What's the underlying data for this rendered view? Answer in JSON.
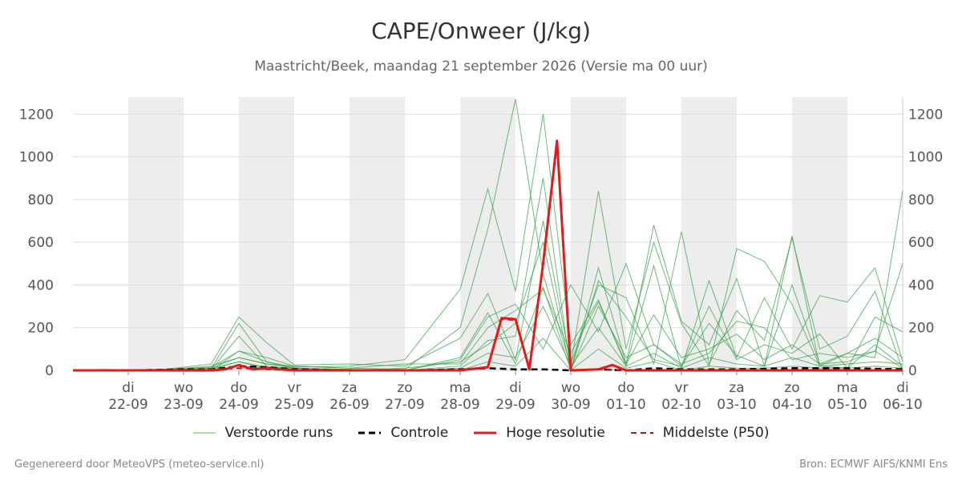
{
  "title": "CAPE/Onweer (J/kg)",
  "subtitle": "Maastricht/Beek, maandag 21 september 2026 (Versie ma 00 uur)",
  "footer_left": "Gegenereerd door MeteoVPS (meteo-service.nl)",
  "footer_right": "Bron: ECMWF AIFS/KNMI Ens",
  "colors": {
    "ensemble": "#2e9e3e",
    "control": "#000000",
    "hires": "#e31a1c",
    "median": "#b21416",
    "weekend_band": "#ededed",
    "grid": "#dddddd"
  },
  "legend": [
    {
      "label": "Verstoorde runs",
      "style": "thin-green"
    },
    {
      "label": "Controle",
      "style": "black-dashed"
    },
    {
      "label": "Hoge resolutie",
      "style": "red-solid"
    },
    {
      "label": "Middelste (P50)",
      "style": "darkred-dashed"
    }
  ],
  "chart_data": {
    "type": "line",
    "title": "CAPE/Onweer (J/kg)",
    "subtitle": "Maastricht/Beek, maandag 21 september 2026 (Versie ma 00 uur)",
    "x_unit": "days since 21-09 00:00",
    "xlim": [
      0,
      15
    ],
    "ylim": [
      0,
      1280
    ],
    "yticks": [
      0,
      200,
      400,
      600,
      800,
      1000,
      1200
    ],
    "grid": true,
    "legend_position": "bottom",
    "x_ticks": [
      {
        "x": 1,
        "day": "di",
        "date": "22-09"
      },
      {
        "x": 2,
        "day": "wo",
        "date": "23-09"
      },
      {
        "x": 3,
        "day": "do",
        "date": "24-09"
      },
      {
        "x": 4,
        "day": "vr",
        "date": "25-09"
      },
      {
        "x": 5,
        "day": "za",
        "date": "26-09"
      },
      {
        "x": 6,
        "day": "zo",
        "date": "27-09"
      },
      {
        "x": 7,
        "day": "ma",
        "date": "28-09"
      },
      {
        "x": 8,
        "day": "di",
        "date": "29-09"
      },
      {
        "x": 9,
        "day": "wo",
        "date": "30-09"
      },
      {
        "x": 10,
        "day": "do",
        "date": "01-10"
      },
      {
        "x": 11,
        "day": "vr",
        "date": "02-10"
      },
      {
        "x": 12,
        "day": "za",
        "date": "03-10"
      },
      {
        "x": 13,
        "day": "zo",
        "date": "04-10"
      },
      {
        "x": 14,
        "day": "ma",
        "date": "05-10"
      },
      {
        "x": 15,
        "day": "di",
        "date": "06-10"
      }
    ],
    "shaded_days": [
      [
        1,
        2
      ],
      [
        3,
        4
      ],
      [
        5,
        6
      ],
      [
        7,
        8
      ],
      [
        9,
        10
      ],
      [
        11,
        12
      ],
      [
        13,
        14
      ]
    ],
    "series": [
      {
        "name": "Verstoorde runs",
        "role": "ensemble",
        "x": [
          0.5,
          1.5,
          2.5,
          3.0,
          3.5,
          4.0,
          5.0,
          6.0,
          7.0,
          7.5,
          8.0,
          8.5,
          9.0,
          9.5,
          10.0,
          10.5,
          11.0,
          11.5,
          12.0,
          12.5,
          13.0,
          13.5,
          14.0,
          14.5,
          15.0
        ],
        "y": [
          0,
          0,
          10,
          40,
          15,
          10,
          5,
          0,
          60,
          270,
          30,
          390,
          0,
          480,
          30,
          680,
          230,
          120,
          430,
          20,
          630,
          20,
          80,
          60,
          840
        ]
      },
      {
        "name": "Verstoorde runs",
        "role": "ensemble",
        "x": [
          0.5,
          1.5,
          2.5,
          3.0,
          3.5,
          4.0,
          5.0,
          6.0,
          7.0,
          7.5,
          8.0,
          8.5,
          9.0,
          9.5,
          10.0,
          10.5,
          11.0,
          11.5,
          12.0,
          12.5,
          13.0,
          13.5,
          14.0,
          14.5,
          15.0
        ],
        "y": [
          0,
          0,
          20,
          60,
          30,
          20,
          10,
          5,
          200,
          660,
          1270,
          450,
          20,
          840,
          100,
          600,
          220,
          20,
          570,
          510,
          310,
          20,
          10,
          250,
          180
        ]
      },
      {
        "name": "Verstoorde runs",
        "role": "ensemble",
        "x": [
          0.5,
          1.5,
          2.5,
          3.0,
          3.5,
          4.0,
          5.0,
          6.0,
          7.0,
          7.5,
          8.0,
          8.5,
          9.0,
          9.5,
          10.0,
          10.5,
          11.0,
          11.5,
          12.0,
          12.5,
          13.0,
          13.5,
          14.0,
          14.5,
          15.0
        ],
        "y": [
          0,
          5,
          15,
          90,
          40,
          15,
          20,
          50,
          380,
          850,
          370,
          1200,
          120,
          330,
          20,
          490,
          10,
          420,
          60,
          340,
          100,
          350,
          320,
          480,
          40
        ]
      },
      {
        "name": "Verstoorde runs",
        "role": "ensemble",
        "x": [
          0.5,
          1.5,
          2.5,
          3.0,
          3.5,
          4.0,
          5.0,
          6.0,
          7.0,
          7.5,
          8.0,
          8.5,
          9.0,
          9.5,
          10.0,
          10.5,
          11.0,
          11.5,
          12.0,
          12.5,
          13.0,
          13.5,
          14.0,
          14.5,
          15.0
        ],
        "y": [
          5,
          0,
          30,
          250,
          130,
          25,
          30,
          20,
          150,
          360,
          50,
          700,
          30,
          400,
          340,
          30,
          650,
          30,
          280,
          140,
          620,
          100,
          160,
          370,
          0
        ]
      },
      {
        "name": "Verstoorde runs",
        "role": "ensemble",
        "x": [
          0.5,
          1.5,
          2.5,
          3.0,
          3.5,
          4.0,
          5.0,
          6.0,
          7.0,
          7.5,
          8.0,
          8.5,
          9.0,
          9.5,
          10.0,
          10.5,
          11.0,
          11.5,
          12.0,
          12.5,
          13.0,
          13.5,
          14.0,
          14.5,
          15.0
        ],
        "y": [
          0,
          0,
          10,
          220,
          40,
          10,
          5,
          0,
          50,
          250,
          310,
          100,
          400,
          180,
          500,
          120,
          20,
          220,
          70,
          20,
          400,
          30,
          40,
          90,
          500
        ]
      },
      {
        "name": "Verstoorde runs",
        "role": "ensemble",
        "x": [
          0.5,
          1.5,
          2.5,
          3.0,
          3.5,
          4.0,
          5.0,
          6.0,
          7.0,
          7.5,
          8.0,
          8.5,
          9.0,
          9.5,
          10.0,
          10.5,
          11.0,
          11.5,
          12.0,
          12.5,
          13.0,
          13.5,
          14.0,
          14.5,
          15.0
        ],
        "y": [
          0,
          0,
          5,
          160,
          20,
          5,
          0,
          10,
          40,
          120,
          220,
          600,
          0,
          420,
          250,
          50,
          20,
          300,
          50,
          120,
          80,
          170,
          10,
          120,
          20
        ]
      },
      {
        "name": "Verstoorde runs",
        "role": "ensemble",
        "x": [
          0.5,
          1.5,
          2.5,
          3.0,
          3.5,
          4.0,
          5.0,
          6.0,
          7.0,
          7.5,
          8.0,
          8.5,
          9.0,
          9.5,
          10.0,
          10.5,
          11.0,
          11.5,
          12.0,
          12.5,
          13.0,
          13.5,
          14.0,
          14.5,
          15.0
        ],
        "y": [
          0,
          0,
          0,
          90,
          60,
          20,
          10,
          30,
          30,
          200,
          280,
          380,
          80,
          320,
          30,
          260,
          60,
          100,
          170,
          50,
          120,
          30,
          80,
          150,
          60
        ]
      },
      {
        "name": "Verstoorde runs",
        "role": "ensemble",
        "x": [
          0.5,
          1.5,
          2.5,
          3.0,
          3.5,
          4.0,
          5.0,
          6.0,
          7.0,
          7.5,
          8.0,
          8.5,
          9.0,
          9.5,
          10.0,
          10.5,
          11.0,
          11.5,
          12.0,
          12.5,
          13.0,
          13.5,
          14.0,
          14.5,
          15.0
        ],
        "y": [
          0,
          0,
          10,
          60,
          30,
          10,
          0,
          0,
          20,
          140,
          160,
          900,
          0,
          300,
          60,
          120,
          30,
          80,
          230,
          200,
          50,
          80,
          60,
          90,
          10
        ]
      },
      {
        "name": "Verstoorde runs",
        "role": "ensemble",
        "x": [
          0.5,
          1.5,
          2.5,
          3.0,
          3.5,
          4.0,
          5.0,
          6.0,
          7.0,
          7.5,
          8.0,
          8.5,
          9.0,
          9.5,
          10.0,
          10.5,
          11.0,
          11.5,
          12.0,
          12.5,
          13.0,
          13.5,
          14.0,
          14.5,
          15.0
        ],
        "y": [
          0,
          0,
          5,
          40,
          10,
          5,
          0,
          0,
          10,
          80,
          60,
          300,
          20,
          200,
          20,
          80,
          10,
          60,
          30,
          20,
          60,
          20,
          30,
          40,
          30
        ]
      },
      {
        "name": "Verstoorde runs",
        "role": "ensemble",
        "x": [
          0.5,
          1.5,
          2.5,
          3.0,
          3.5,
          4.0,
          5.0,
          6.0,
          7.0,
          7.5,
          8.0,
          8.5,
          9.0,
          9.5,
          10.0,
          10.5,
          11.0,
          11.5,
          12.0,
          12.5,
          13.0,
          13.5,
          14.0,
          14.5,
          15.0
        ],
        "y": [
          0,
          0,
          0,
          20,
          10,
          0,
          0,
          0,
          0,
          40,
          20,
          150,
          0,
          100,
          10,
          40,
          0,
          20,
          10,
          10,
          20,
          10,
          10,
          20,
          10
        ]
      },
      {
        "name": "Controle",
        "role": "control",
        "x": [
          0.0,
          1.0,
          2.0,
          2.5,
          3.0,
          3.5,
          4.0,
          5.0,
          6.0,
          7.0,
          7.5,
          8.0,
          8.5,
          9.0,
          9.5,
          10.0,
          10.5,
          11.0,
          12.0,
          13.0,
          14.0,
          15.0
        ],
        "y": [
          0,
          0,
          5,
          5,
          20,
          15,
          5,
          0,
          0,
          5,
          10,
          5,
          5,
          0,
          5,
          0,
          10,
          5,
          5,
          10,
          10,
          5
        ]
      },
      {
        "name": "Hoge resolutie",
        "role": "hires",
        "x": [
          0.0,
          0.5,
          1.0,
          1.5,
          2.0,
          2.5,
          2.75,
          3.0,
          3.25,
          3.5,
          3.75,
          4.0,
          5.0,
          6.0,
          7.0,
          7.5,
          7.75,
          8.0,
          8.25,
          8.5,
          8.75,
          9.0,
          9.5,
          9.75,
          10.0,
          10.5,
          11.0,
          12.0,
          13.0,
          14.0,
          15.0
        ],
        "y": [
          0,
          0,
          0,
          0,
          0,
          0,
          5,
          25,
          5,
          10,
          5,
          0,
          0,
          0,
          0,
          15,
          245,
          240,
          5,
          500,
          1075,
          0,
          5,
          25,
          0,
          0,
          0,
          0,
          0,
          0,
          0
        ]
      },
      {
        "name": "Middelste (P50)",
        "role": "median",
        "x": [
          0.0,
          1.0,
          2.0,
          3.0,
          4.0,
          5.0,
          6.0,
          7.0,
          7.5,
          7.75,
          8.0,
          8.25,
          8.5,
          8.75,
          9.0,
          9.5,
          10.0,
          11.0,
          12.0,
          13.0,
          14.0,
          15.0
        ],
        "y": [
          0,
          0,
          0,
          10,
          0,
          0,
          0,
          0,
          15,
          240,
          235,
          5,
          500,
          1060,
          0,
          5,
          0,
          0,
          0,
          0,
          0,
          0
        ]
      }
    ]
  }
}
